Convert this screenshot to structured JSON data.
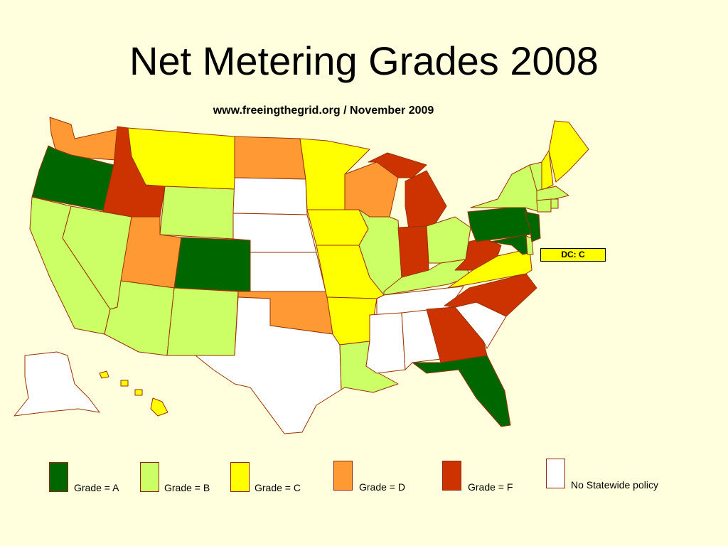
{
  "title": "Net Metering Grades 2008",
  "subtitle": "www.freeingthegrid.org / November 2009",
  "dc_callout": "DC: C",
  "colors": {
    "A": "#006600",
    "B": "#CCFF66",
    "C": "#FFFF00",
    "D": "#FF9933",
    "F": "#CC3300",
    "none": "#FFFFFF",
    "border": "#993300",
    "background": "#FFFFDD"
  },
  "legend": [
    {
      "grade": "A",
      "label": "Grade = A"
    },
    {
      "grade": "B",
      "label": "Grade = B"
    },
    {
      "grade": "C",
      "label": "Grade = C"
    },
    {
      "grade": "D",
      "label": "Grade = D"
    },
    {
      "grade": "F",
      "label": "Grade = F"
    },
    {
      "grade": "none",
      "label": "No Statewide policy"
    }
  ],
  "states": {
    "WA": "D",
    "OR": "A",
    "CA": "B",
    "NV": "B",
    "ID": "F",
    "MT": "C",
    "WY": "B",
    "UT": "D",
    "AZ": "B",
    "CO": "A",
    "NM": "B",
    "ND": "D",
    "SD": "none",
    "NE": "none",
    "KS": "none",
    "OK": "D",
    "TX": "none",
    "MN": "C",
    "IA": "C",
    "MO": "C",
    "AR": "C",
    "LA": "B",
    "WI": "D",
    "IL": "B",
    "MI": "F",
    "IN": "F",
    "OH": "B",
    "KY": "B",
    "TN": "none",
    "MS": "none",
    "AL": "none",
    "GA": "F",
    "FL": "A",
    "SC": "none",
    "NC": "F",
    "VA": "C",
    "WV": "F",
    "MD": "A",
    "DE": "B",
    "NJ": "A",
    "PA": "A",
    "NY": "B",
    "VT": "B",
    "NH": "C",
    "ME": "C",
    "MA": "B",
    "CT": "B",
    "RI": "B",
    "AK": "none",
    "HI": "C",
    "DC": "C"
  }
}
